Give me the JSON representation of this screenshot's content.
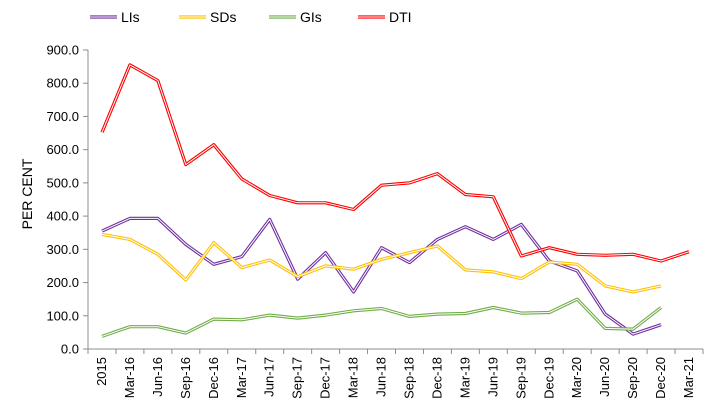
{
  "chart_data": {
    "type": "line",
    "title": "",
    "xlabel": "",
    "ylabel": "PER CENT",
    "ylim": [
      0,
      900
    ],
    "yticks": [
      0,
      100,
      200,
      300,
      400,
      500,
      600,
      700,
      800,
      900
    ],
    "ytick_format": "fixed1",
    "grid": false,
    "legend": "top-left",
    "categories": [
      "2015",
      "Mar-16",
      "Jun-16",
      "Sep-16",
      "Dec-16",
      "Mar-17",
      "Jun-17",
      "Sep-17",
      "Dec-17",
      "Mar-18",
      "Jun-18",
      "Sep-18",
      "Dec-18",
      "Mar-19",
      "Jun-19",
      "Sep-19",
      "Dec-19",
      "Mar-20",
      "Jun-20",
      "Sep-20",
      "Dec-20",
      "Mar-21"
    ],
    "series": [
      {
        "name": "LIs",
        "color": "#7030A0",
        "values": [
          355,
          393,
          393,
          315,
          255,
          278,
          390,
          210,
          290,
          172,
          305,
          260,
          330,
          368,
          330,
          375,
          265,
          235,
          105,
          45,
          73,
          null
        ]
      },
      {
        "name": "SDs",
        "color": "#FFC000",
        "values": [
          345,
          330,
          285,
          208,
          320,
          245,
          268,
          218,
          250,
          240,
          270,
          290,
          310,
          238,
          232,
          212,
          262,
          255,
          190,
          172,
          190,
          null
        ]
      },
      {
        "name": "GIs",
        "color": "#70AD47",
        "values": [
          38,
          67,
          67,
          48,
          90,
          88,
          102,
          93,
          102,
          115,
          122,
          98,
          105,
          107,
          125,
          108,
          110,
          150,
          62,
          60,
          125,
          null
        ]
      },
      {
        "name": "DTI",
        "color": "#FF0000",
        "values": [
          652,
          855,
          808,
          555,
          615,
          512,
          462,
          440,
          440,
          420,
          493,
          500,
          528,
          465,
          458,
          280,
          305,
          285,
          282,
          285,
          265,
          293
        ]
      }
    ]
  }
}
